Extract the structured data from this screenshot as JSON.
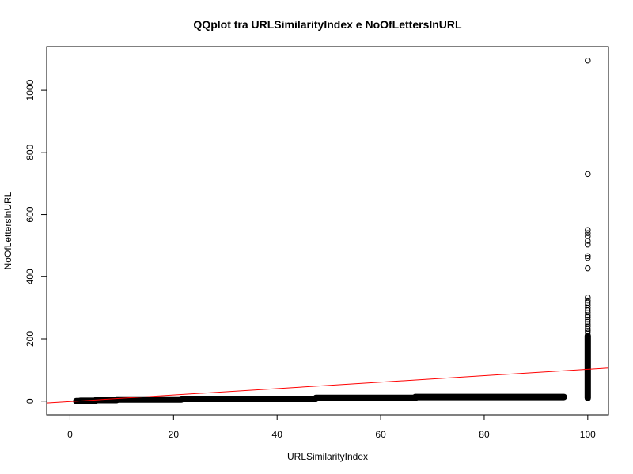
{
  "chart_data": {
    "type": "scatter",
    "title": "QQplot tra URLSimilarityIndex e NoOfLettersInURL",
    "xlabel": "URLSimilarityIndex",
    "ylabel": "NoOfLettersInURL",
    "xlim": [
      -4.5,
      104
    ],
    "ylim": [
      -43.9,
      1140
    ],
    "xticks": [
      0,
      20,
      40,
      60,
      80,
      100
    ],
    "yticks": [
      0,
      200,
      400,
      600,
      800,
      1000
    ],
    "reference_line": {
      "color": "#ff0000",
      "intercept": -1.5,
      "slope": 1.04
    },
    "colors": {
      "points": "#000000",
      "line": "#ff0000",
      "frame": "#000000"
    },
    "point_style": "open-circle",
    "steps": [
      {
        "x_from": 1.2,
        "x_to": 2,
        "y": 0
      },
      {
        "x_from": 2,
        "x_to": 5,
        "y": 1
      },
      {
        "x_from": 5,
        "x_to": 9,
        "y": 3
      },
      {
        "x_from": 9,
        "x_to": 21.5,
        "y": 5
      },
      {
        "x_from": 21.5,
        "x_to": 47.5,
        "y": 7
      },
      {
        "x_from": 47.5,
        "x_to": 66.7,
        "y": 10
      },
      {
        "x_from": 66.7,
        "x_to": 95.4,
        "y": 13
      }
    ],
    "column": {
      "x": 100,
      "y_from": 10,
      "y_to": 210
    },
    "outliers": [
      {
        "x": 100,
        "y": 1095
      },
      {
        "x": 100,
        "y": 730
      },
      {
        "x": 100,
        "y": 550
      },
      {
        "x": 100,
        "y": 540
      },
      {
        "x": 100,
        "y": 530
      },
      {
        "x": 100,
        "y": 515
      },
      {
        "x": 100,
        "y": 503
      },
      {
        "x": 100,
        "y": 466
      },
      {
        "x": 100,
        "y": 460
      },
      {
        "x": 100,
        "y": 427
      },
      {
        "x": 100,
        "y": 333
      },
      {
        "x": 100,
        "y": 323
      },
      {
        "x": 100,
        "y": 316
      },
      {
        "x": 100,
        "y": 309
      },
      {
        "x": 100,
        "y": 300
      },
      {
        "x": 100,
        "y": 292
      },
      {
        "x": 100,
        "y": 285
      },
      {
        "x": 100,
        "y": 276
      },
      {
        "x": 100,
        "y": 270
      },
      {
        "x": 100,
        "y": 262
      },
      {
        "x": 100,
        "y": 255
      },
      {
        "x": 100,
        "y": 248
      },
      {
        "x": 100,
        "y": 240
      },
      {
        "x": 100,
        "y": 232
      },
      {
        "x": 100,
        "y": 226
      },
      {
        "x": 100,
        "y": 220
      }
    ]
  }
}
